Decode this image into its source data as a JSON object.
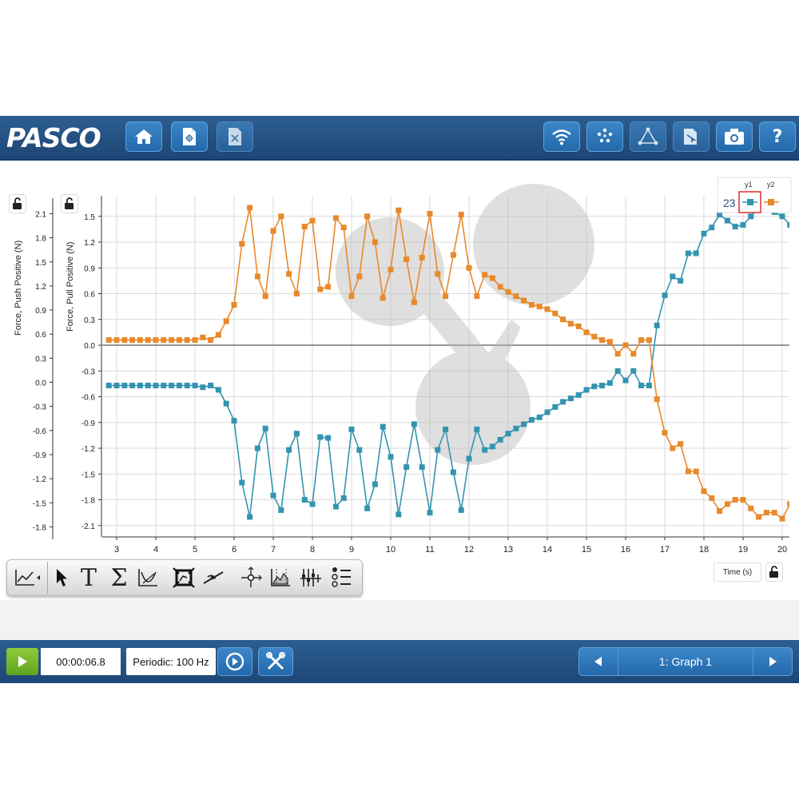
{
  "header": {
    "logo_text": "PASCO",
    "buttons": [
      "home-icon",
      "new-file-icon",
      "close-file-icon",
      "wireless-icon",
      "data-points-icon",
      "triangle-graph-icon",
      "export-icon",
      "camera-icon",
      "help-icon"
    ],
    "help_label": "?"
  },
  "graph": {
    "y1_axis_label": "Force, Push Positive (N)",
    "y2_axis_label": "Force, Pull Positive (N)",
    "x_axis_label": "Time (s)",
    "legend": {
      "count": "23",
      "y1_label": "y1",
      "y2_label": "y2"
    },
    "y1_ticks": [
      "2.1",
      "1.8",
      "1.5",
      "1.2",
      "0.9",
      "0.6",
      "0.3",
      "0.0",
      "-0.3",
      "-0.6",
      "-0.9",
      "-1.2",
      "-1.5",
      "-1.8"
    ],
    "y2_ticks": [
      "1.5",
      "1.2",
      "0.9",
      "0.6",
      "0.3",
      "0.0",
      "-0.3",
      "-0.6",
      "-0.9",
      "-1.2",
      "-1.5",
      "-1.8",
      "-2.1"
    ],
    "x_ticks": [
      "3",
      "4",
      "5",
      "6",
      "7",
      "8",
      "9",
      "10",
      "11",
      "12",
      "13",
      "14",
      "15",
      "16",
      "17",
      "18",
      "19",
      "20"
    ]
  },
  "chart_data": {
    "type": "line",
    "xlabel": "Time (s)",
    "ylabel": "Force, Pull Positive (N)",
    "xlim": [
      2.8,
      20.4
    ],
    "ylim": [
      -2.2,
      1.7
    ],
    "grid": true,
    "series": [
      {
        "name": "y1",
        "color": "#3494b0",
        "points": [
          [
            2.8,
            -0.47
          ],
          [
            3.0,
            -0.47
          ],
          [
            3.2,
            -0.47
          ],
          [
            3.4,
            -0.47
          ],
          [
            3.6,
            -0.47
          ],
          [
            3.8,
            -0.47
          ],
          [
            4.0,
            -0.47
          ],
          [
            4.2,
            -0.47
          ],
          [
            4.4,
            -0.47
          ],
          [
            4.6,
            -0.47
          ],
          [
            4.8,
            -0.47
          ],
          [
            5.0,
            -0.47
          ],
          [
            5.2,
            -0.49
          ],
          [
            5.4,
            -0.47
          ],
          [
            5.6,
            -0.52
          ],
          [
            5.8,
            -0.68
          ],
          [
            6.0,
            -0.88
          ],
          [
            6.2,
            -1.6
          ],
          [
            6.4,
            -2.0
          ],
          [
            6.6,
            -1.2
          ],
          [
            6.8,
            -0.97
          ],
          [
            7.0,
            -1.75
          ],
          [
            7.2,
            -1.92
          ],
          [
            7.4,
            -1.22
          ],
          [
            7.6,
            -1.03
          ],
          [
            7.8,
            -1.8
          ],
          [
            8.0,
            -1.85
          ],
          [
            8.2,
            -1.07
          ],
          [
            8.4,
            -1.08
          ],
          [
            8.6,
            -1.88
          ],
          [
            8.8,
            -1.78
          ],
          [
            9.0,
            -0.98
          ],
          [
            9.2,
            -1.22
          ],
          [
            9.4,
            -1.9
          ],
          [
            9.6,
            -1.62
          ],
          [
            9.8,
            -0.95
          ],
          [
            10.0,
            -1.3
          ],
          [
            10.2,
            -1.97
          ],
          [
            10.4,
            -1.42
          ],
          [
            10.6,
            -0.92
          ],
          [
            10.8,
            -1.42
          ],
          [
            11.0,
            -1.95
          ],
          [
            11.2,
            -1.22
          ],
          [
            11.4,
            -0.98
          ],
          [
            11.6,
            -1.48
          ],
          [
            11.8,
            -1.92
          ],
          [
            12.0,
            -1.32
          ],
          [
            12.2,
            -0.98
          ],
          [
            12.4,
            -1.22
          ],
          [
            12.6,
            -1.18
          ],
          [
            12.8,
            -1.1
          ],
          [
            13.0,
            -1.03
          ],
          [
            13.2,
            -0.97
          ],
          [
            13.4,
            -0.92
          ],
          [
            13.6,
            -0.87
          ],
          [
            13.8,
            -0.84
          ],
          [
            14.0,
            -0.78
          ],
          [
            14.2,
            -0.72
          ],
          [
            14.4,
            -0.66
          ],
          [
            14.6,
            -0.62
          ],
          [
            14.8,
            -0.58
          ],
          [
            15.0,
            -0.52
          ],
          [
            15.2,
            -0.48
          ],
          [
            15.4,
            -0.47
          ],
          [
            15.6,
            -0.44
          ],
          [
            15.8,
            -0.3
          ],
          [
            16.0,
            -0.41
          ],
          [
            16.2,
            -0.3
          ],
          [
            16.4,
            -0.47
          ],
          [
            16.6,
            -0.47
          ],
          [
            16.8,
            0.23
          ],
          [
            17.0,
            0.58
          ],
          [
            17.2,
            0.8
          ],
          [
            17.4,
            0.75
          ],
          [
            17.6,
            1.07
          ],
          [
            17.8,
            1.07
          ],
          [
            18.0,
            1.3
          ],
          [
            18.2,
            1.37
          ],
          [
            18.4,
            1.52
          ],
          [
            18.6,
            1.45
          ],
          [
            18.8,
            1.38
          ],
          [
            19.0,
            1.4
          ],
          [
            19.2,
            1.5
          ],
          [
            19.4,
            1.6
          ],
          [
            19.6,
            1.62
          ],
          [
            19.8,
            1.55
          ],
          [
            20.0,
            1.5
          ],
          [
            20.2,
            1.4
          ],
          [
            20.4,
            1.3
          ]
        ]
      },
      {
        "name": "y2",
        "color": "#e8892a",
        "points": [
          [
            2.8,
            0.06
          ],
          [
            3.0,
            0.06
          ],
          [
            3.2,
            0.06
          ],
          [
            3.4,
            0.06
          ],
          [
            3.6,
            0.06
          ],
          [
            3.8,
            0.06
          ],
          [
            4.0,
            0.06
          ],
          [
            4.2,
            0.06
          ],
          [
            4.4,
            0.06
          ],
          [
            4.6,
            0.06
          ],
          [
            4.8,
            0.06
          ],
          [
            5.0,
            0.06
          ],
          [
            5.2,
            0.09
          ],
          [
            5.4,
            0.06
          ],
          [
            5.6,
            0.12
          ],
          [
            5.8,
            0.28
          ],
          [
            6.0,
            0.47
          ],
          [
            6.2,
            1.18
          ],
          [
            6.4,
            1.6
          ],
          [
            6.6,
            0.8
          ],
          [
            6.8,
            0.57
          ],
          [
            7.0,
            1.33
          ],
          [
            7.2,
            1.5
          ],
          [
            7.4,
            0.83
          ],
          [
            7.6,
            0.6
          ],
          [
            7.8,
            1.38
          ],
          [
            8.0,
            1.45
          ],
          [
            8.2,
            0.65
          ],
          [
            8.4,
            0.68
          ],
          [
            8.6,
            1.48
          ],
          [
            8.8,
            1.37
          ],
          [
            9.0,
            0.57
          ],
          [
            9.2,
            0.8
          ],
          [
            9.4,
            1.5
          ],
          [
            9.6,
            1.2
          ],
          [
            9.8,
            0.55
          ],
          [
            10.0,
            0.88
          ],
          [
            10.2,
            1.57
          ],
          [
            10.4,
            1.0
          ],
          [
            10.6,
            0.5
          ],
          [
            10.8,
            1.02
          ],
          [
            11.0,
            1.53
          ],
          [
            11.2,
            0.83
          ],
          [
            11.4,
            0.57
          ],
          [
            11.6,
            1.05
          ],
          [
            11.8,
            1.52
          ],
          [
            12.0,
            0.9
          ],
          [
            12.2,
            0.57
          ],
          [
            12.4,
            0.82
          ],
          [
            12.6,
            0.78
          ],
          [
            12.8,
            0.68
          ],
          [
            13.0,
            0.62
          ],
          [
            13.2,
            0.57
          ],
          [
            13.4,
            0.52
          ],
          [
            13.6,
            0.47
          ],
          [
            13.8,
            0.45
          ],
          [
            14.0,
            0.42
          ],
          [
            14.2,
            0.37
          ],
          [
            14.4,
            0.3
          ],
          [
            14.6,
            0.25
          ],
          [
            14.8,
            0.22
          ],
          [
            15.0,
            0.15
          ],
          [
            15.2,
            0.1
          ],
          [
            15.4,
            0.06
          ],
          [
            15.6,
            0.04
          ],
          [
            15.8,
            -0.1
          ],
          [
            16.0,
            0.0
          ],
          [
            16.2,
            -0.1
          ],
          [
            16.4,
            0.06
          ],
          [
            16.6,
            0.06
          ],
          [
            16.8,
            -0.63
          ],
          [
            17.0,
            -1.02
          ],
          [
            17.2,
            -1.2
          ],
          [
            17.4,
            -1.15
          ],
          [
            17.6,
            -1.47
          ],
          [
            17.8,
            -1.47
          ],
          [
            18.0,
            -1.7
          ],
          [
            18.2,
            -1.78
          ],
          [
            18.4,
            -1.93
          ],
          [
            18.6,
            -1.85
          ],
          [
            18.8,
            -1.8
          ],
          [
            19.0,
            -1.8
          ],
          [
            19.2,
            -1.9
          ],
          [
            19.4,
            -2.0
          ],
          [
            19.6,
            -1.95
          ],
          [
            19.8,
            -1.95
          ],
          [
            20.0,
            -2.02
          ],
          [
            20.2,
            -1.85
          ],
          [
            20.4,
            -1.72
          ]
        ]
      }
    ]
  },
  "toolbar": {
    "tools": [
      "graph-type-icon",
      "select-arrow-icon",
      "text-tool-icon",
      "sum-icon",
      "curve-fit-icon",
      "scale-to-fit-icon",
      "slope-tool-icon",
      "coordinates-tool-icon",
      "area-tool-icon",
      "add-series-icon",
      "legend-list-icon"
    ],
    "text_tool_glyph": "T",
    "sum_glyph": "Σ"
  },
  "footer": {
    "elapsed_time": "00:00:06.8",
    "sampling_rate": "Periodic: 100 Hz",
    "page_label": "1: Graph 1"
  }
}
